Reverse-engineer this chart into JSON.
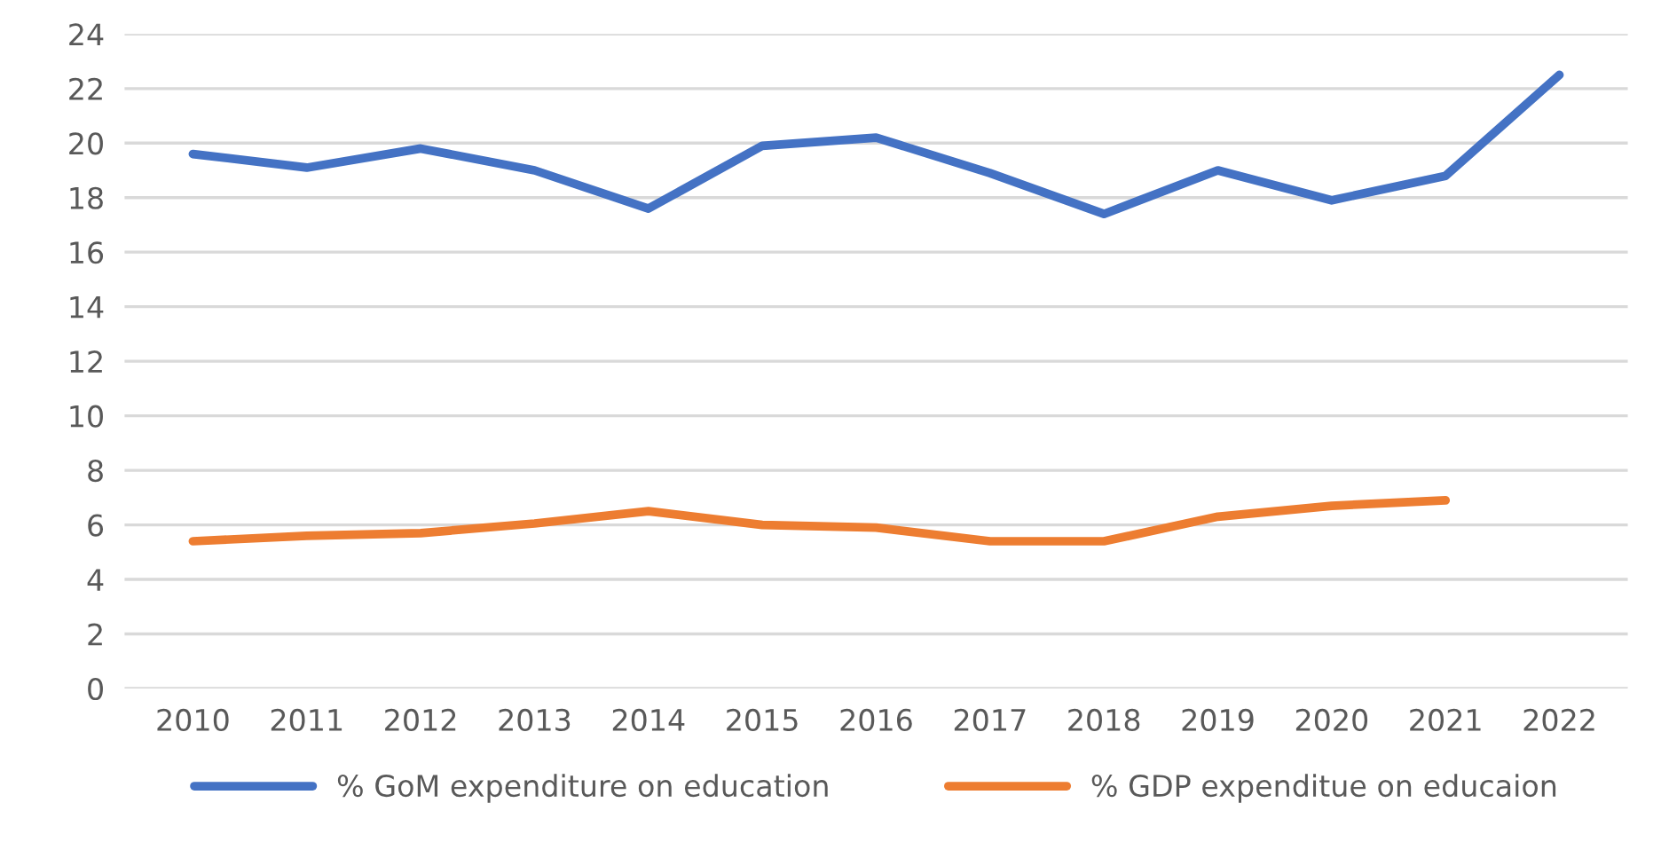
{
  "chart_data": {
    "type": "line",
    "categories": [
      "2010",
      "2011",
      "2012",
      "2013",
      "2014",
      "2015",
      "2016",
      "2017",
      "2018",
      "2019",
      "2020",
      "2021",
      "2022"
    ],
    "series": [
      {
        "name": "% GoM expenditure on education",
        "color": "#4472c4",
        "values": [
          19.6,
          19.1,
          19.8,
          19.0,
          17.6,
          19.9,
          20.2,
          18.9,
          17.4,
          19.0,
          17.9,
          18.8,
          22.5
        ]
      },
      {
        "name": "% GDP expenditue on educaion",
        "color": "#ed7d31",
        "values": [
          5.4,
          5.6,
          5.7,
          6.05,
          6.5,
          6.0,
          5.9,
          5.4,
          5.4,
          6.3,
          6.7,
          6.9,
          null
        ]
      }
    ],
    "ylim": [
      0,
      24
    ],
    "yticks": [
      0,
      2,
      4,
      6,
      8,
      10,
      12,
      14,
      16,
      18,
      20,
      22,
      24
    ],
    "grid": "y",
    "legend": "bottom",
    "marker": "none",
    "line_style": "solid"
  }
}
